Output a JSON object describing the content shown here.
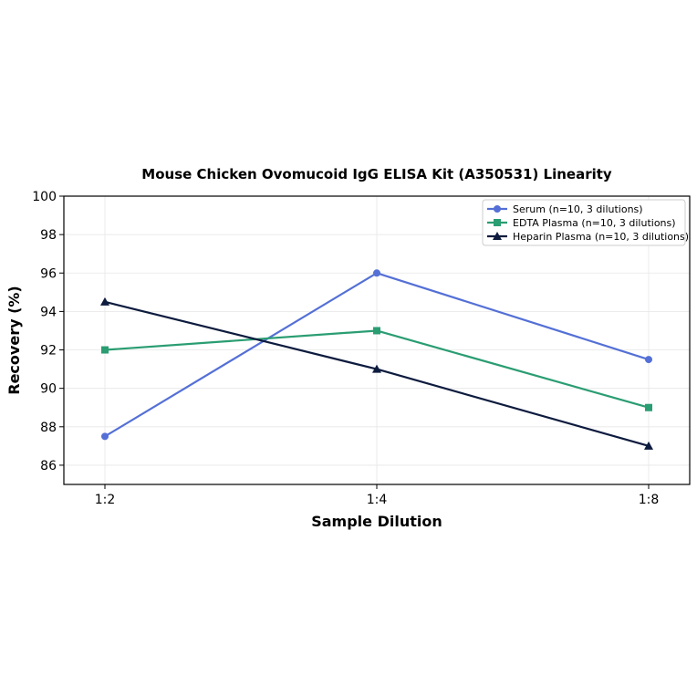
{
  "chart_data": {
    "type": "line",
    "title": "Mouse Chicken Ovomucoid IgG ELISA Kit (A350531) Linearity",
    "xlabel": "Sample Dilution",
    "ylabel": "Recovery (%)",
    "categories": [
      "1:2",
      "1:4",
      "1:8"
    ],
    "ylim": [
      85,
      100
    ],
    "yticks": [
      86,
      88,
      90,
      92,
      94,
      96,
      98,
      100
    ],
    "grid": true,
    "legend_position": "top-right",
    "series": [
      {
        "name": "Serum (n=10, 3 dilutions)",
        "values": [
          87.5,
          96.0,
          91.5
        ],
        "color": "#5470d6",
        "marker": "circle"
      },
      {
        "name": "EDTA Plasma (n=10, 3 dilutions)",
        "values": [
          92.0,
          93.0,
          89.0
        ],
        "color": "#2a9d72",
        "marker": "square"
      },
      {
        "name": "Heparin Plasma (n=10, 3 dilutions)",
        "values": [
          94.5,
          91.0,
          87.0
        ],
        "color": "#0d1b3e",
        "marker": "triangle"
      }
    ]
  }
}
